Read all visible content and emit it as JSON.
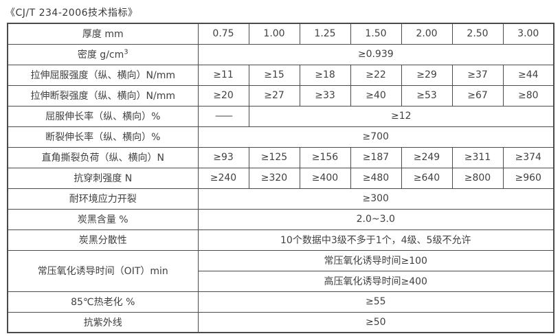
{
  "title": "《CJ/T 234-2006技术指标》",
  "colors": {
    "border": "#4a4a4a",
    "text": "#404040",
    "background": "#ffffff"
  },
  "table": {
    "header": {
      "label": "厚度 mm",
      "values": [
        "0.75",
        "1.00",
        "1.25",
        "1.50",
        "2.00",
        "2.50",
        "3.00"
      ]
    },
    "rows": [
      {
        "label_prefix": "密度 g/cm",
        "label_sup": "3",
        "span_value": "≥0.939"
      },
      {
        "label": "拉伸屈服强度（纵、横向）N/mm",
        "values": [
          "≥11",
          "≥15",
          "≥18",
          "≥22",
          "≥29",
          "≥37",
          "≥44"
        ]
      },
      {
        "label": "拉伸断裂强度（纵、横向）N/mm",
        "values": [
          "≥20",
          "≥27",
          "≥33",
          "≥40",
          "≥53",
          "≥67",
          "≥80"
        ]
      },
      {
        "label": "屈服伸长率（纵、横向）%",
        "first_value": "——",
        "span_value": "≥12"
      },
      {
        "label": "断裂伸长率（纵、横向）%",
        "span_value": "≥700"
      },
      {
        "label": "直角撕裂负荷（纵、横向）N",
        "values": [
          "≥93",
          "≥125",
          "≥156",
          "≥187",
          "≥249",
          "≥311",
          "≥374"
        ]
      },
      {
        "label": "抗穿刺强度 N",
        "values": [
          "≥240",
          "≥320",
          "≥400",
          "≥480",
          "≥640",
          "≥800",
          "≥960"
        ]
      },
      {
        "label": "耐环境应力开裂",
        "span_value": "≥300"
      },
      {
        "label": "炭黑含量 %",
        "span_value": "2.0~3.0"
      },
      {
        "label": "炭黑分散性",
        "span_value": "10个数据中3级不多于1个，4级、5级不允许"
      },
      {
        "label": "常压氧化诱导时间（OIT）min",
        "sub_values": [
          "常压氧化诱导时间≥100",
          "高压氧化诱导时间≥400"
        ]
      },
      {
        "label": "85℃热老化 %",
        "span_value": "≥55"
      },
      {
        "label": "抗紫外线",
        "span_value": "≥50"
      }
    ]
  }
}
